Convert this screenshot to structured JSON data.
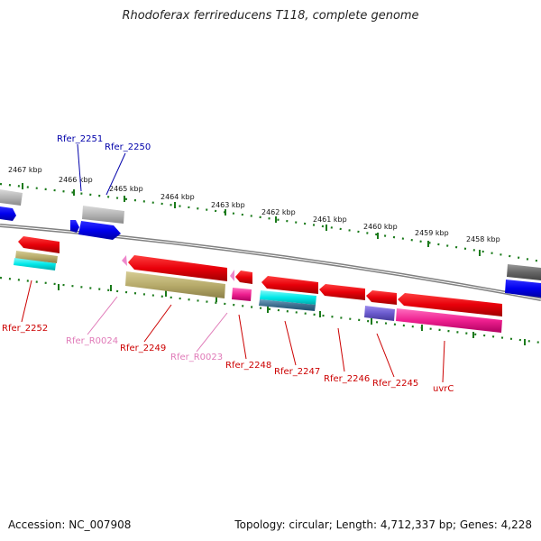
{
  "title": "Rhodoferax ferrireducens T118, complete genome",
  "accession": "Accession: NC_007908",
  "genome_info": "Topology: circular; Length: 4,712,337 bp; Genes: 4,228",
  "ruler_ticks": [
    "2467 kbp",
    "2466 kbp",
    "2465 kbp",
    "2464 kbp",
    "2463 kbp",
    "2462 kbp",
    "2461 kbp",
    "2460 kbp",
    "2459 kbp",
    "2458 kbp"
  ],
  "colors": {
    "red_gene": "#e8000a",
    "blue_gene": "#0000ee",
    "gray_gene": "#b4b4b4",
    "dark_gray_gene": "#666666",
    "olive_feature": "#b8ac6c",
    "cyan_feature": "#00e8e8",
    "steel_feature": "#3f6f8f",
    "magenta_feature": "#ee1f8f",
    "purple_feature": "#6a5acd",
    "pink_rna": "#ee88cc",
    "ruler_tick": "#1a7a1a",
    "backbone": "#808080",
    "label_red": "#cc0000",
    "label_blue": "#0000aa",
    "label_pink": "#e07ab8"
  },
  "gene_labels": [
    {
      "id": "l_2251",
      "text": "Rfer_2251",
      "color": "blue"
    },
    {
      "id": "l_2250",
      "text": "Rfer_2250",
      "color": "blue"
    },
    {
      "id": "l_2252",
      "text": "Rfer_2252",
      "color": "red"
    },
    {
      "id": "l_R0024",
      "text": "Rfer_R0024",
      "color": "pink"
    },
    {
      "id": "l_2249",
      "text": "Rfer_2249",
      "color": "red"
    },
    {
      "id": "l_R0023",
      "text": "Rfer_R0023",
      "color": "pink"
    },
    {
      "id": "l_2248",
      "text": "Rfer_2248",
      "color": "red"
    },
    {
      "id": "l_2247",
      "text": "Rfer_2247",
      "color": "red"
    },
    {
      "id": "l_2246",
      "text": "Rfer_2246",
      "color": "red"
    },
    {
      "id": "l_2245",
      "text": "Rfer_2245",
      "color": "red"
    },
    {
      "id": "l_uvrC",
      "text": "uvrC",
      "color": "red"
    }
  ]
}
